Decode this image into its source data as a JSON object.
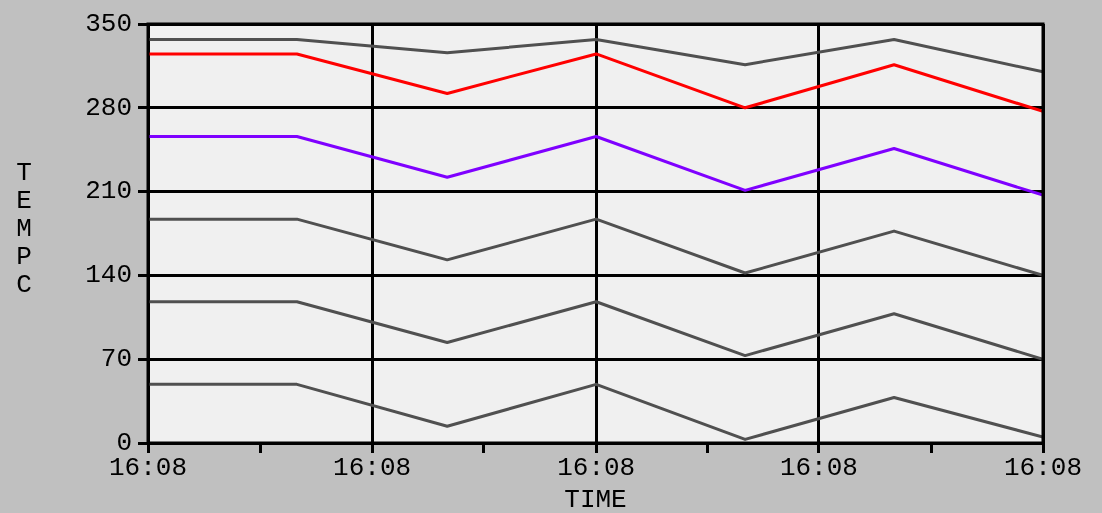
{
  "chart_data": {
    "type": "line",
    "xlabel": "TIME",
    "ylabel": "TEMPC",
    "x": [
      16.13333,
      16.13444,
      16.13556,
      16.13667,
      16.13778,
      16.13889,
      16.14
    ],
    "xlim": [
      16.13333,
      16.14
    ],
    "xticks": [
      {
        "value": 16.13333,
        "label": "16:08"
      },
      {
        "value": 16.13417,
        "label": null
      },
      {
        "value": 16.135,
        "label": "16:08"
      },
      {
        "value": 16.13583,
        "label": null
      },
      {
        "value": 16.13667,
        "label": "16:08"
      },
      {
        "value": 16.1375,
        "label": null
      },
      {
        "value": 16.13833,
        "label": "16:08"
      },
      {
        "value": 16.13917,
        "label": null
      },
      {
        "value": 16.14,
        "label": "16:08"
      }
    ],
    "ylim": [
      0,
      350
    ],
    "yticks": [
      0,
      70,
      140,
      210,
      280,
      350
    ],
    "grid": true,
    "legend": false,
    "marker": "none",
    "line_style": "solid",
    "series": [
      {
        "color": "#505050",
        "values": [
          337,
          337,
          326,
          337,
          316,
          337,
          310
        ]
      },
      {
        "color": "#ff0000",
        "values": [
          325,
          325,
          292,
          325,
          280,
          316,
          277
        ]
      },
      {
        "color": "#7f00ff",
        "values": [
          256,
          256,
          222,
          256,
          211,
          246,
          207
        ]
      },
      {
        "color": "#505050",
        "values": [
          187,
          187,
          153,
          187,
          142,
          177,
          140
        ]
      },
      {
        "color": "#505050",
        "values": [
          118,
          118,
          84,
          118,
          73,
          108,
          70
        ]
      },
      {
        "color": "#505050",
        "values": [
          49,
          49,
          14,
          49,
          3,
          38,
          5
        ]
      }
    ]
  }
}
